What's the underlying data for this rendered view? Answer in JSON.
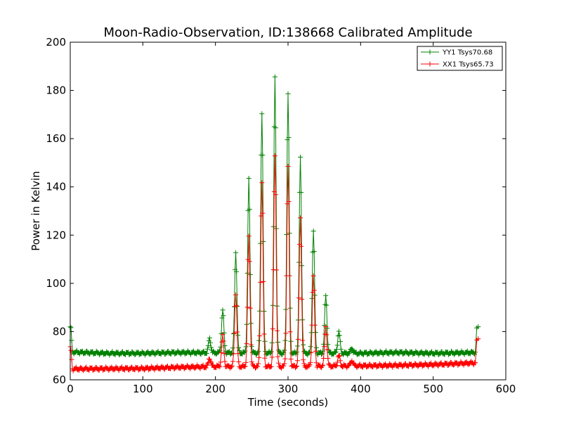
{
  "chart_data": {
    "type": "line",
    "title": "Moon-Radio-Observation, ID:138668 Calibrated Amplitude",
    "xlabel": "Time (seconds)",
    "ylabel": "Power in Kelvin",
    "xlim": [
      0,
      600
    ],
    "ylim": [
      60,
      200
    ],
    "xticks": [
      0,
      100,
      200,
      300,
      400,
      500,
      600
    ],
    "yticks": [
      60,
      80,
      100,
      120,
      140,
      160,
      180,
      200
    ],
    "grid": false,
    "legend_position": "top-right",
    "marker": "+",
    "series": [
      {
        "name": "YY1 Tsys70.68",
        "color": "#008000",
        "baseline": [
          [
            0,
            82
          ],
          [
            1,
            81
          ],
          [
            3,
            71.5
          ],
          [
            50,
            71
          ],
          [
            100,
            71
          ],
          [
            150,
            71.3
          ],
          [
            200,
            71.2
          ],
          [
            300,
            71
          ],
          [
            400,
            71
          ],
          [
            450,
            71.3
          ],
          [
            500,
            71
          ],
          [
            557,
            71.3
          ]
        ],
        "peaks": [
          [
            192,
            77
          ],
          [
            210,
            89
          ],
          [
            228,
            113
          ],
          [
            246,
            143
          ],
          [
            264,
            171
          ],
          [
            282,
            185
          ],
          [
            300,
            179
          ],
          [
            317,
            152
          ],
          [
            335,
            122
          ],
          [
            352,
            95
          ],
          [
            370,
            80
          ],
          [
            388,
            73
          ]
        ],
        "endpoint": [
          [
            558,
            71.5
          ],
          [
            560,
            81.5
          ],
          [
            562,
            82
          ]
        ]
      },
      {
        "name": "XX1 Tsys65.73",
        "color": "#ff0000",
        "baseline": [
          [
            0,
            73
          ],
          [
            1,
            72
          ],
          [
            3,
            64.5
          ],
          [
            50,
            64.6
          ],
          [
            100,
            64.7
          ],
          [
            150,
            65.2
          ],
          [
            200,
            65.5
          ],
          [
            300,
            65.5
          ],
          [
            400,
            65.8
          ],
          [
            450,
            66
          ],
          [
            500,
            66.3
          ],
          [
            557,
            67
          ]
        ],
        "peaks": [
          [
            192,
            69
          ],
          [
            210,
            78
          ],
          [
            228,
            96
          ],
          [
            246,
            119
          ],
          [
            264,
            142
          ],
          [
            282,
            153
          ],
          [
            300,
            148
          ],
          [
            317,
            127
          ],
          [
            335,
            103
          ],
          [
            352,
            82
          ],
          [
            370,
            70
          ],
          [
            388,
            68
          ]
        ],
        "endpoint": [
          [
            558,
            67
          ],
          [
            560,
            76.5
          ],
          [
            562,
            77
          ]
        ]
      }
    ]
  }
}
